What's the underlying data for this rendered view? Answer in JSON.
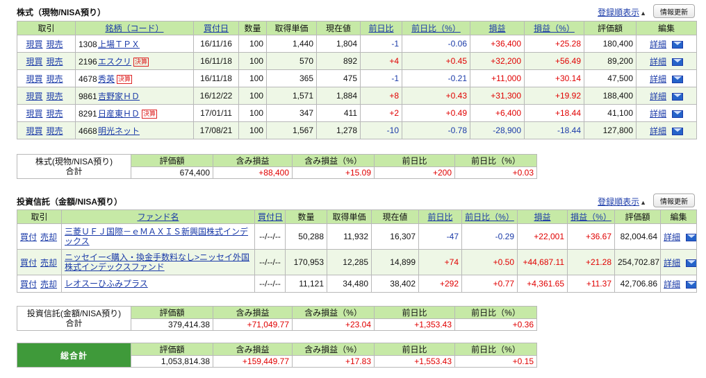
{
  "stocks": {
    "title": "株式（現物/NISA預り）",
    "sort_link": "登録順表示",
    "refresh": "情報更新",
    "headers": {
      "trade": "取引",
      "name": "銘柄（コード）",
      "buy_date": "買付日",
      "qty": "数量",
      "cost": "取得単価",
      "price": "現在値",
      "chg": "前日比",
      "chg_pct": "前日比（%）",
      "pl": "損益",
      "pl_pct": "損益（%）",
      "value": "評価額",
      "edit": "編集"
    },
    "actions": {
      "buy": "現買",
      "sell": "現売",
      "detail": "詳細"
    },
    "rows": [
      {
        "code": "1308",
        "name": "上場ＴＰＸ",
        "badge": "",
        "buy_date": "16/11/16",
        "qty": "100",
        "cost": "1,440",
        "price": "1,804",
        "chg": "-1",
        "chg_pct": "-0.06",
        "pl": "+36,400",
        "pl_pct": "+25.28",
        "value": "180,400"
      },
      {
        "code": "2196",
        "name": "エスクリ",
        "badge": "決算",
        "buy_date": "16/11/18",
        "qty": "100",
        "cost": "570",
        "price": "892",
        "chg": "+4",
        "chg_pct": "+0.45",
        "pl": "+32,200",
        "pl_pct": "+56.49",
        "value": "89,200"
      },
      {
        "code": "4678",
        "name": "秀英",
        "badge": "決算",
        "buy_date": "16/11/18",
        "qty": "100",
        "cost": "365",
        "price": "475",
        "chg": "-1",
        "chg_pct": "-0.21",
        "pl": "+11,000",
        "pl_pct": "+30.14",
        "value": "47,500"
      },
      {
        "code": "9861",
        "name": "吉野家ＨＤ",
        "badge": "",
        "buy_date": "16/12/22",
        "qty": "100",
        "cost": "1,571",
        "price": "1,884",
        "chg": "+8",
        "chg_pct": "+0.43",
        "pl": "+31,300",
        "pl_pct": "+19.92",
        "value": "188,400"
      },
      {
        "code": "8291",
        "name": "日産東ＨＤ",
        "badge": "決算",
        "buy_date": "17/01/11",
        "qty": "100",
        "cost": "347",
        "price": "411",
        "chg": "+2",
        "chg_pct": "+0.49",
        "pl": "+6,400",
        "pl_pct": "+18.44",
        "value": "41,100"
      },
      {
        "code": "4668",
        "name": "明光ネット",
        "badge": "",
        "buy_date": "17/08/21",
        "qty": "100",
        "cost": "1,567",
        "price": "1,278",
        "chg": "-10",
        "chg_pct": "-0.78",
        "pl": "-28,900",
        "pl_pct": "-18.44",
        "value": "127,800"
      }
    ],
    "summary": {
      "label1": "株式(現物/NISA預り)",
      "label2": "合計",
      "h_value": "評価額",
      "h_pl": "含み損益",
      "h_pl_pct": "含み損益（%）",
      "h_chg": "前日比",
      "h_chg_pct": "前日比（%）",
      "value": "674,400",
      "pl": "+88,400",
      "pl_pct": "+15.09",
      "chg": "+200",
      "chg_pct": "+0.03"
    }
  },
  "funds": {
    "title": "投資信託（金額/NISA預り）",
    "sort_link": "登録順表示",
    "refresh": "情報更新",
    "headers": {
      "trade": "取引",
      "name": "ファンド名",
      "buy_date": "買付日",
      "qty": "数量",
      "cost": "取得単価",
      "price": "現在値",
      "chg": "前日比",
      "chg_pct": "前日比（%）",
      "pl": "損益",
      "pl_pct": "損益（%）",
      "value": "評価額",
      "edit": "編集"
    },
    "actions": {
      "buy": "買付",
      "sell": "売却",
      "detail": "詳細"
    },
    "rows": [
      {
        "name": "三菱ＵＦＪ国際－ｅＭＡＸＩＳ新興国株式インデックス",
        "buy_date": "--/--/--",
        "qty": "50,288",
        "cost": "11,932",
        "price": "16,307",
        "chg": "-47",
        "chg_pct": "-0.29",
        "pl": "+22,001",
        "pl_pct": "+36.67",
        "value": "82,004.64"
      },
      {
        "name": "ニッセイー<購入・換金手数料なし>ニッセイ外国株式インデックスファンド",
        "buy_date": "--/--/--",
        "qty": "170,953",
        "cost": "12,285",
        "price": "14,899",
        "chg": "+74",
        "chg_pct": "+0.50",
        "pl": "+44,687.11",
        "pl_pct": "+21.28",
        "value": "254,702.87"
      },
      {
        "name": "レオスーひふみプラス",
        "buy_date": "--/--/--",
        "qty": "11,121",
        "cost": "34,480",
        "price": "38,402",
        "chg": "+292",
        "chg_pct": "+0.77",
        "pl": "+4,361.65",
        "pl_pct": "+11.37",
        "value": "42,706.86"
      }
    ],
    "summary": {
      "label1": "投資信託(金額/NISA預り)",
      "label2": "合計",
      "h_value": "評価額",
      "h_pl": "含み損益",
      "h_pl_pct": "含み損益（%）",
      "h_chg": "前日比",
      "h_chg_pct": "前日比（%）",
      "value": "379,414.38",
      "pl": "+71,049.77",
      "pl_pct": "+23.04",
      "chg": "+1,353.43",
      "chg_pct": "+0.36"
    }
  },
  "total": {
    "label": "総合計",
    "h_value": "評価額",
    "h_pl": "含み損益",
    "h_pl_pct": "含み損益（%）",
    "h_chg": "前日比",
    "h_chg_pct": "前日比（%）",
    "value": "1,053,814.38",
    "pl": "+159,449.77",
    "pl_pct": "+17.83",
    "chg": "+1,553.43",
    "chg_pct": "+0.15"
  }
}
